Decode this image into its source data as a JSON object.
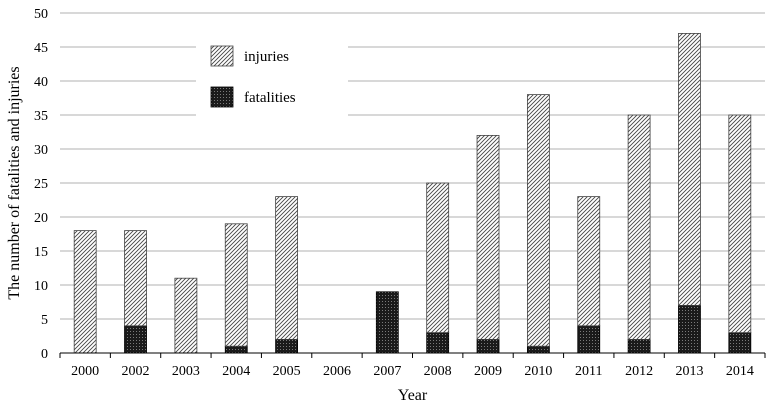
{
  "chart_data": {
    "type": "bar",
    "stacked": true,
    "categories": [
      "2000",
      "2002",
      "2003",
      "2004",
      "2005",
      "2006",
      "2007",
      "2008",
      "2009",
      "2010",
      "2011",
      "2012",
      "2013",
      "2014"
    ],
    "series": [
      {
        "name": "injuries",
        "pattern": "diagonal-hatch",
        "color": "#555555",
        "values": [
          18,
          14,
          11,
          18,
          21,
          0,
          0,
          22,
          30,
          37,
          19,
          33,
          40,
          32
        ]
      },
      {
        "name": "fatalities",
        "pattern": "crosshatch-dark",
        "color": "#222222",
        "values": [
          0,
          4,
          0,
          1,
          2,
          0,
          9,
          3,
          2,
          1,
          4,
          2,
          7,
          3
        ]
      }
    ],
    "title": "",
    "xlabel": "Year",
    "ylabel": "The number of fatalities and injuries",
    "ylim": [
      0,
      50
    ],
    "yticks": [
      0,
      5,
      10,
      15,
      20,
      25,
      30,
      35,
      40,
      45,
      50
    ],
    "grid": true,
    "legend_position": "top-left"
  }
}
